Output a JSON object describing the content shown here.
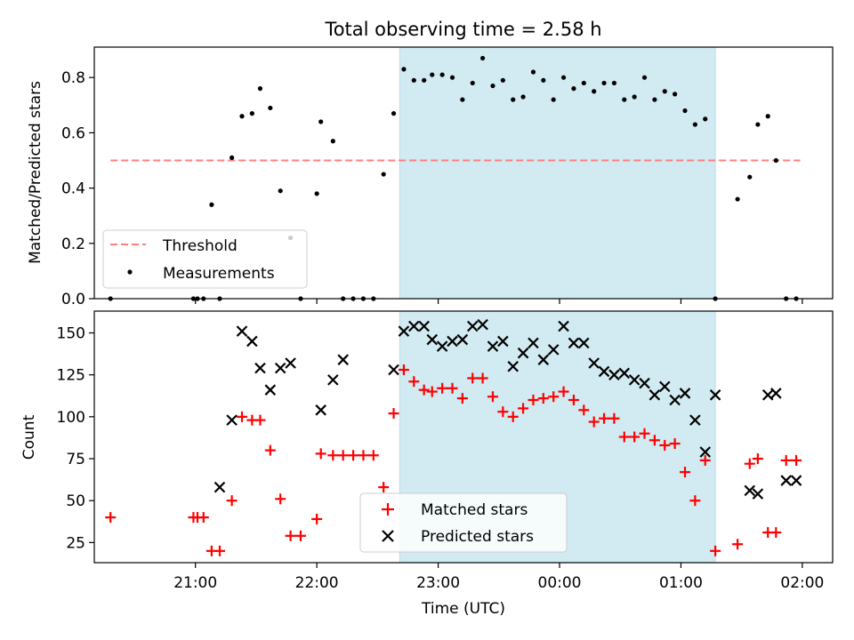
{
  "chart_data": [
    {
      "type": "scatter",
      "title": "Total observing time = 2.58 h",
      "ylabel": "Matched/Predicted stars",
      "xlabel": "",
      "ylim": [
        0,
        0.91
      ],
      "yticks": [
        0.0,
        0.2,
        0.4,
        0.6,
        0.8
      ],
      "ytick_labels": [
        "0.0",
        "0.2",
        "0.4",
        "0.6",
        "0.8"
      ],
      "shaded_interval": {
        "start": "22:41",
        "end": "01:17",
        "color": "#add8e6"
      },
      "threshold": {
        "name": "Threshold",
        "value": 0.5,
        "x_start": "20:18",
        "x_end": "01:59",
        "color": "#ff7f7f",
        "style": "dashed"
      },
      "legend": {
        "placement": "lower-left",
        "entries": [
          "Threshold",
          "Measurements"
        ]
      },
      "series": [
        {
          "name": "Measurements",
          "marker": "dot",
          "color": "#000000",
          "x": [
            "20:18",
            "20:59",
            "21:01",
            "21:04",
            "21:08",
            "21:12",
            "21:18",
            "21:23",
            "21:28",
            "21:32",
            "21:37",
            "21:42",
            "21:47",
            "21:52",
            "22:00",
            "22:02",
            "22:08",
            "22:13",
            "22:18",
            "22:23",
            "22:28",
            "22:33",
            "22:38",
            "22:43",
            "22:48",
            "22:53",
            "22:57",
            "23:02",
            "23:07",
            "23:12",
            "23:17",
            "23:22",
            "23:27",
            "23:32",
            "23:37",
            "23:42",
            "23:47",
            "23:52",
            "23:57",
            "00:02",
            "00:07",
            "00:12",
            "00:17",
            "00:22",
            "00:27",
            "00:32",
            "00:37",
            "00:42",
            "00:47",
            "00:52",
            "00:57",
            "01:02",
            "01:07",
            "01:12",
            "01:17",
            "01:28",
            "01:34",
            "01:38",
            "01:43",
            "01:47",
            "01:52",
            "01:57"
          ],
          "y": [
            0.0,
            0.0,
            0.0,
            0.0,
            0.34,
            0.0,
            0.51,
            0.66,
            0.67,
            0.76,
            0.69,
            0.39,
            0.22,
            0.0,
            0.38,
            0.64,
            0.57,
            0.0,
            0.0,
            0.0,
            0.0,
            0.45,
            0.67,
            0.83,
            0.79,
            0.79,
            0.81,
            0.81,
            0.8,
            0.72,
            0.78,
            0.87,
            0.77,
            0.79,
            0.72,
            0.73,
            0.82,
            0.79,
            0.72,
            0.8,
            0.76,
            0.78,
            0.75,
            0.78,
            0.78,
            0.72,
            0.73,
            0.8,
            0.72,
            0.75,
            0.74,
            0.68,
            0.63,
            0.65,
            0.0,
            0.36,
            0.44,
            0.63,
            0.66,
            0.5,
            0.0,
            0.0
          ]
        }
      ]
    },
    {
      "type": "scatter",
      "title": "",
      "ylabel": "Count",
      "xlabel": "Time (UTC)",
      "ylim": [
        13,
        163
      ],
      "yticks": [
        25,
        50,
        75,
        100,
        125,
        150
      ],
      "ytick_labels": [
        "25",
        "50",
        "75",
        "100",
        "125",
        "150"
      ],
      "xlim": [
        "20:10",
        "02:15"
      ],
      "xticks": [
        "21:00",
        "22:00",
        "23:00",
        "00:00",
        "01:00",
        "02:00"
      ],
      "shaded_interval": {
        "start": "22:41",
        "end": "01:17",
        "color": "#add8e6"
      },
      "legend": {
        "placement": "lower-center",
        "entries": [
          "Matched stars",
          "Predicted stars"
        ]
      },
      "series": [
        {
          "name": "Matched stars",
          "marker": "plus",
          "color": "#ff0000",
          "x": [
            "20:18",
            "20:59",
            "21:01",
            "21:04",
            "21:08",
            "21:12",
            "21:18",
            "21:23",
            "21:28",
            "21:32",
            "21:37",
            "21:42",
            "21:47",
            "21:52",
            "22:00",
            "22:02",
            "22:08",
            "22:13",
            "22:18",
            "22:23",
            "22:28",
            "22:33",
            "22:38",
            "22:43",
            "22:48",
            "22:53",
            "22:57",
            "23:02",
            "23:07",
            "23:12",
            "23:17",
            "23:22",
            "23:27",
            "23:32",
            "23:37",
            "23:42",
            "23:47",
            "23:52",
            "23:57",
            "00:02",
            "00:07",
            "00:12",
            "00:17",
            "00:22",
            "00:27",
            "00:32",
            "00:37",
            "00:42",
            "00:47",
            "00:52",
            "00:57",
            "01:02",
            "01:07",
            "01:12",
            "01:17",
            "01:28",
            "01:34",
            "01:38",
            "01:43",
            "01:47",
            "01:52",
            "01:57"
          ],
          "y": [
            40,
            40,
            40,
            40,
            20,
            20,
            50,
            100,
            98,
            98,
            80,
            51,
            29,
            29,
            39,
            78,
            77,
            77,
            77,
            77,
            77,
            58,
            102,
            128,
            121,
            116,
            115,
            117,
            117,
            111,
            123,
            123,
            112,
            103,
            100,
            105,
            110,
            111,
            112,
            115,
            110,
            104,
            97,
            99,
            99,
            88,
            88,
            90,
            86,
            83,
            84,
            67,
            50,
            74,
            20,
            24,
            72,
            75,
            31,
            31,
            74,
            74
          ]
        },
        {
          "name": "Predicted stars",
          "marker": "x",
          "color": "#000000",
          "x": [
            "21:12",
            "21:18",
            "21:23",
            "21:28",
            "21:32",
            "21:37",
            "21:42",
            "21:47",
            "22:02",
            "22:08",
            "22:13",
            "22:38",
            "22:43",
            "22:48",
            "22:53",
            "22:57",
            "23:02",
            "23:07",
            "23:12",
            "23:17",
            "23:22",
            "23:27",
            "23:32",
            "23:37",
            "23:42",
            "23:47",
            "23:52",
            "23:57",
            "00:02",
            "00:07",
            "00:12",
            "00:17",
            "00:22",
            "00:27",
            "00:32",
            "00:37",
            "00:42",
            "00:47",
            "00:52",
            "00:57",
            "01:02",
            "01:07",
            "01:12",
            "01:17",
            "01:34",
            "01:38",
            "01:43",
            "01:47",
            "01:52",
            "01:57"
          ],
          "y": [
            58,
            98,
            151,
            145,
            129,
            116,
            129,
            132,
            104,
            122,
            134,
            128,
            151,
            154,
            154,
            146,
            142,
            145,
            146,
            154,
            155,
            142,
            145,
            130,
            138,
            144,
            134,
            140,
            154,
            144,
            144,
            132,
            127,
            125,
            126,
            122,
            120,
            113,
            118,
            110,
            114,
            98,
            79,
            113,
            56,
            54,
            113,
            114,
            62,
            62
          ]
        }
      ]
    }
  ]
}
